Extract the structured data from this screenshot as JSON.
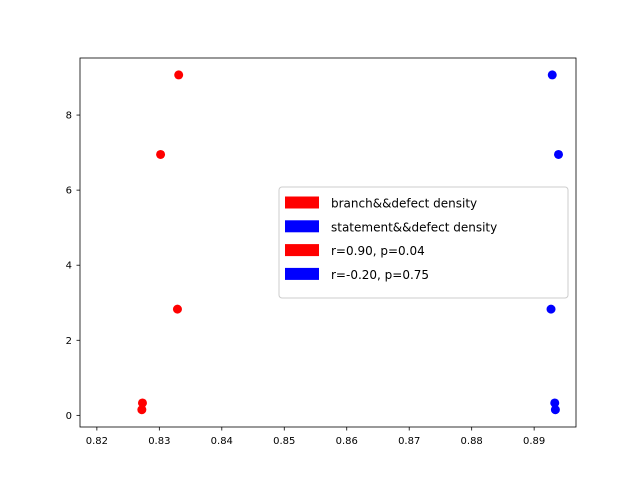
{
  "chart_data": {
    "type": "scatter",
    "title": "",
    "xlabel": "",
    "ylabel": "",
    "xlim": [
      0.8173,
      0.8967
    ],
    "ylim": [
      -0.31,
      9.52
    ],
    "x_ticks": [
      0.82,
      0.83,
      0.84,
      0.85,
      0.86,
      0.87,
      0.88,
      0.89
    ],
    "x_tick_labels": [
      "0.82",
      "0.83",
      "0.84",
      "0.85",
      "0.86",
      "0.87",
      "0.88",
      "0.89"
    ],
    "y_ticks": [
      0,
      2,
      4,
      6,
      8
    ],
    "y_tick_labels": [
      "0",
      "2",
      "4",
      "6",
      "8"
    ],
    "grid": false,
    "legend_position": "center-right",
    "series": [
      {
        "color": "#ff0000",
        "points": [
          {
            "x": 0.8331,
            "y": 9.07
          },
          {
            "x": 0.8302,
            "y": 6.95
          },
          {
            "x": 0.8329,
            "y": 2.83
          },
          {
            "x": 0.8273,
            "y": 0.33
          },
          {
            "x": 0.8272,
            "y": 0.15
          }
        ]
      },
      {
        "color": "#0000ff",
        "points": [
          {
            "x": 0.8929,
            "y": 9.07
          },
          {
            "x": 0.8939,
            "y": 6.95
          },
          {
            "x": 0.8927,
            "y": 2.83
          },
          {
            "x": 0.8933,
            "y": 0.33
          },
          {
            "x": 0.8934,
            "y": 0.15
          }
        ]
      }
    ],
    "legend": [
      {
        "label": "branch&&defect density",
        "color": "#ff0000"
      },
      {
        "label": "statement&&defect density",
        "color": "#0000ff"
      },
      {
        "label": "r=0.90, p=0.04",
        "color": "#ff0000"
      },
      {
        "label": "r=-0.20, p=0.75",
        "color": "#0000ff"
      }
    ]
  }
}
